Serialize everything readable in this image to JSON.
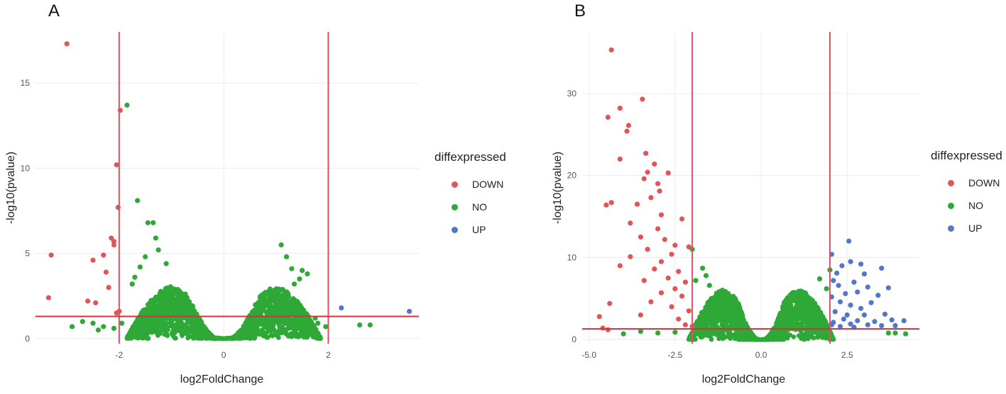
{
  "colors": {
    "down": "#e05558",
    "no": "#2ea836",
    "up": "#5276c8",
    "threshold": "#d0333e",
    "vline": "#e0505f"
  },
  "panels": [
    {
      "letter": "A",
      "legend": {
        "title": "diffexpressed",
        "items": [
          "DOWN",
          "NO",
          "UP"
        ]
      }
    },
    {
      "letter": "B",
      "legend": {
        "title": "diffexpressed",
        "items": [
          "DOWN",
          "NO",
          "UP"
        ]
      }
    }
  ],
  "chart_data": [
    {
      "type": "scatter",
      "title": "A",
      "xlabel": "log2FoldChange",
      "ylabel": "-log10(pvalue)",
      "xlim": [
        -3.6,
        3.8
      ],
      "ylim": [
        -0.3,
        18.0
      ],
      "xticks": [
        -2,
        0,
        2
      ],
      "xtick_labels": [
        "-2",
        "0",
        "2"
      ],
      "yticks": [
        0,
        5,
        10,
        15
      ],
      "ytick_labels": [
        "0",
        "5",
        "10",
        "15"
      ],
      "grid": true,
      "vlines": [
        -2,
        2
      ],
      "hline": 1.3,
      "legend": "right",
      "no_cloud": {
        "centers": [
          -1.0,
          1.0
        ],
        "half_width": 0.85,
        "peak": 3.0
      },
      "series": [
        {
          "name": "DOWN",
          "points": [
            [
              -3.0,
              17.3
            ],
            [
              -3.3,
              4.9
            ],
            [
              -3.35,
              2.4
            ],
            [
              -2.5,
              4.6
            ],
            [
              -2.3,
              4.9
            ],
            [
              -2.25,
              3.9
            ],
            [
              -2.2,
              3.0
            ],
            [
              -2.15,
              5.9
            ],
            [
              -2.1,
              5.7
            ],
            [
              -2.1,
              5.5
            ],
            [
              -2.05,
              10.2
            ],
            [
              -2.0,
              1.6
            ],
            [
              -2.05,
              1.5
            ],
            [
              -2.6,
              2.2
            ],
            [
              -2.45,
              2.1
            ],
            [
              -2.02,
              7.7
            ],
            [
              -1.98,
              13.4
            ]
          ]
        },
        {
          "name": "NO",
          "points": [
            [
              -1.85,
              13.7
            ],
            [
              -1.65,
              8.1
            ],
            [
              -1.45,
              6.8
            ],
            [
              -1.3,
              5.9
            ],
            [
              -1.35,
              6.8
            ],
            [
              -1.5,
              4.8
            ],
            [
              -1.6,
              4.2
            ],
            [
              -1.7,
              3.6
            ],
            [
              -1.75,
              3.2
            ],
            [
              -1.25,
              5.2
            ],
            [
              -1.1,
              4.4
            ],
            [
              1.1,
              5.5
            ],
            [
              1.2,
              4.8
            ],
            [
              1.3,
              4.1
            ],
            [
              1.5,
              4.0
            ],
            [
              1.6,
              3.8
            ],
            [
              1.45,
              3.5
            ],
            [
              1.35,
              3.2
            ],
            [
              -2.5,
              0.9
            ],
            [
              -2.7,
              1.0
            ],
            [
              -2.3,
              0.7
            ],
            [
              -2.1,
              0.6
            ],
            [
              -2.9,
              0.7
            ],
            [
              1.8,
              0.9
            ],
            [
              1.95,
              0.7
            ],
            [
              2.6,
              0.8
            ],
            [
              2.8,
              0.8
            ],
            [
              1.75,
              1.2
            ],
            [
              -2.4,
              0.5
            ],
            [
              -1.95,
              0.9
            ]
          ]
        },
        {
          "name": "UP",
          "points": [
            [
              2.25,
              1.8
            ],
            [
              3.55,
              1.6
            ]
          ]
        }
      ]
    },
    {
      "type": "scatter",
      "title": "B",
      "xlabel": "log2FoldChange",
      "ylabel": "-log10(pvalue)",
      "xlim": [
        -5.2,
        4.6
      ],
      "ylim": [
        -0.5,
        37.5
      ],
      "xticks": [
        -5.0,
        -2.5,
        0.0,
        2.5
      ],
      "xtick_labels": [
        "-5.0",
        "-2.5",
        "0.0",
        "2.5"
      ],
      "yticks": [
        0,
        10,
        20,
        30
      ],
      "ytick_labels": [
        "0",
        "10",
        "20",
        "30"
      ],
      "grid": true,
      "vlines": [
        -2,
        2
      ],
      "hline": 1.3,
      "legend": "right",
      "no_cloud": {
        "centers": [
          -1.1,
          1.1
        ],
        "half_width": 1.0,
        "peak": 6.0
      },
      "series": [
        {
          "name": "DOWN",
          "points": [
            [
              -4.35,
              35.3
            ],
            [
              -3.45,
              29.3
            ],
            [
              -4.1,
              28.2
            ],
            [
              -4.45,
              27.1
            ],
            [
              -3.85,
              26.1
            ],
            [
              -3.9,
              25.4
            ],
            [
              -3.35,
              22.7
            ],
            [
              -3.1,
              21.4
            ],
            [
              -4.1,
              22.0
            ],
            [
              -3.3,
              20.4
            ],
            [
              -2.7,
              20.3
            ],
            [
              -3.0,
              19.0
            ],
            [
              -3.4,
              19.6
            ],
            [
              -2.95,
              18.1
            ],
            [
              -4.35,
              16.7
            ],
            [
              -4.5,
              16.4
            ],
            [
              -3.6,
              16.5
            ],
            [
              -3.2,
              17.3
            ],
            [
              -2.9,
              15.2
            ],
            [
              -2.3,
              14.7
            ],
            [
              -3.8,
              14.2
            ],
            [
              -3.0,
              13.5
            ],
            [
              -3.5,
              12.5
            ],
            [
              -2.8,
              12.2
            ],
            [
              -2.5,
              11.5
            ],
            [
              -2.1,
              11.3
            ],
            [
              -3.3,
              11.0
            ],
            [
              -2.6,
              10.4
            ],
            [
              -3.8,
              10.1
            ],
            [
              -4.1,
              9.0
            ],
            [
              -2.9,
              9.5
            ],
            [
              -3.1,
              8.6
            ],
            [
              -2.4,
              8.3
            ],
            [
              -2.7,
              7.5
            ],
            [
              -2.2,
              7.0
            ],
            [
              -3.4,
              7.2
            ],
            [
              -2.5,
              6.2
            ],
            [
              -2.9,
              5.7
            ],
            [
              -2.3,
              5.3
            ],
            [
              -3.2,
              4.6
            ],
            [
              -4.4,
              4.4
            ],
            [
              -2.6,
              4.0
            ],
            [
              -2.1,
              3.5
            ],
            [
              -3.5,
              3.0
            ],
            [
              -2.4,
              2.5
            ],
            [
              -4.7,
              2.8
            ],
            [
              -4.6,
              1.4
            ],
            [
              -4.45,
              1.2
            ],
            [
              -2.2,
              1.8
            ],
            [
              -2.0,
              1.6
            ]
          ]
        },
        {
          "name": "NO",
          "points": [
            [
              -2.0,
              11.0
            ],
            [
              -1.7,
              8.7
            ],
            [
              -1.6,
              7.8
            ],
            [
              -1.9,
              7.2
            ],
            [
              -1.5,
              6.6
            ],
            [
              1.7,
              7.4
            ],
            [
              1.9,
              6.2
            ],
            [
              2.0,
              8.5
            ],
            [
              -3.5,
              1.0
            ],
            [
              -3.0,
              0.8
            ],
            [
              -4.0,
              0.7
            ],
            [
              -2.5,
              0.9
            ],
            [
              3.7,
              0.8
            ],
            [
              3.9,
              0.8
            ],
            [
              4.2,
              0.7
            ],
            [
              1.5,
              1.0
            ]
          ]
        },
        {
          "name": "UP",
          "points": [
            [
              2.55,
              12.0
            ],
            [
              2.05,
              10.4
            ],
            [
              2.6,
              9.5
            ],
            [
              2.9,
              9.2
            ],
            [
              3.5,
              8.7
            ],
            [
              2.35,
              9.0
            ],
            [
              2.2,
              8.1
            ],
            [
              3.0,
              8.0
            ],
            [
              2.1,
              7.2
            ],
            [
              2.7,
              7.0
            ],
            [
              3.1,
              6.4
            ],
            [
              3.7,
              6.3
            ],
            [
              2.25,
              6.6
            ],
            [
              2.45,
              5.6
            ],
            [
              2.8,
              5.8
            ],
            [
              3.4,
              5.4
            ],
            [
              2.05,
              5.2
            ],
            [
              2.3,
              4.6
            ],
            [
              2.6,
              4.2
            ],
            [
              3.2,
              4.5
            ],
            [
              2.9,
              3.8
            ],
            [
              2.15,
              3.4
            ],
            [
              2.5,
              3.0
            ],
            [
              3.0,
              3.0
            ],
            [
              3.6,
              3.1
            ],
            [
              2.4,
              2.5
            ],
            [
              2.8,
              2.3
            ],
            [
              3.3,
              2.2
            ],
            [
              3.8,
              2.4
            ],
            [
              4.15,
              2.3
            ],
            [
              2.1,
              2.1
            ],
            [
              2.6,
              1.9
            ],
            [
              3.1,
              1.8
            ],
            [
              3.5,
              1.7
            ],
            [
              2.3,
              1.6
            ],
            [
              2.7,
              1.5
            ],
            [
              3.9,
              1.7
            ],
            [
              2.05,
              1.8
            ]
          ]
        }
      ]
    }
  ]
}
